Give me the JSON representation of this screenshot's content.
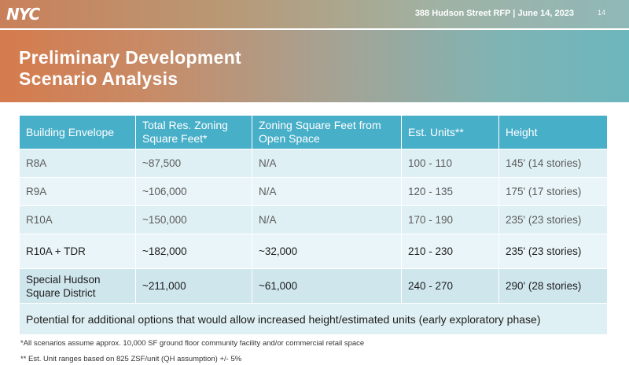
{
  "header": {
    "logo_text": "NYC",
    "meta": "388 Hudson Street RFP  |  June 14, 2023",
    "page_number": "14"
  },
  "title": {
    "line1": "Preliminary Development",
    "line2": "Scenario Analysis"
  },
  "table": {
    "columns": [
      "Building Envelope",
      "Total Res. Zoning Square Feet*",
      "Zoning Square Feet from Open Space",
      "Est. Units**",
      "Height"
    ],
    "rows": [
      [
        "R8A",
        "~87,500",
        "N/A",
        "100 - 110",
        "145' (14 stories)"
      ],
      [
        "R9A",
        "~106,000",
        "N/A",
        "120 - 135",
        "175' (17 stories)"
      ],
      [
        "R10A",
        "~150,000",
        "N/A",
        "170 - 190",
        "235' (23 stories)"
      ],
      [
        "R10A + TDR",
        "~182,000",
        "~32,000",
        "210 - 230",
        "235' (23 stories)"
      ],
      [
        "Special Hudson Square District",
        "~211,000",
        "~61,000",
        "240 - 270",
        "290' (28 stories)"
      ]
    ],
    "note": "Potential for additional options that would allow increased height/estimated units (early exploratory phase)"
  },
  "footnotes": [
    "*All scenarios assume approx. 10,000 SF ground floor community facility and/or commercial retail space",
    "** Est. Unit ranges based on 825 ZSF/unit (QH assumption) +/- 5%"
  ],
  "colors": {
    "header_cell": "#48afc9",
    "row_light": "#dff0f4",
    "row_dark": "#cfe6ed"
  }
}
